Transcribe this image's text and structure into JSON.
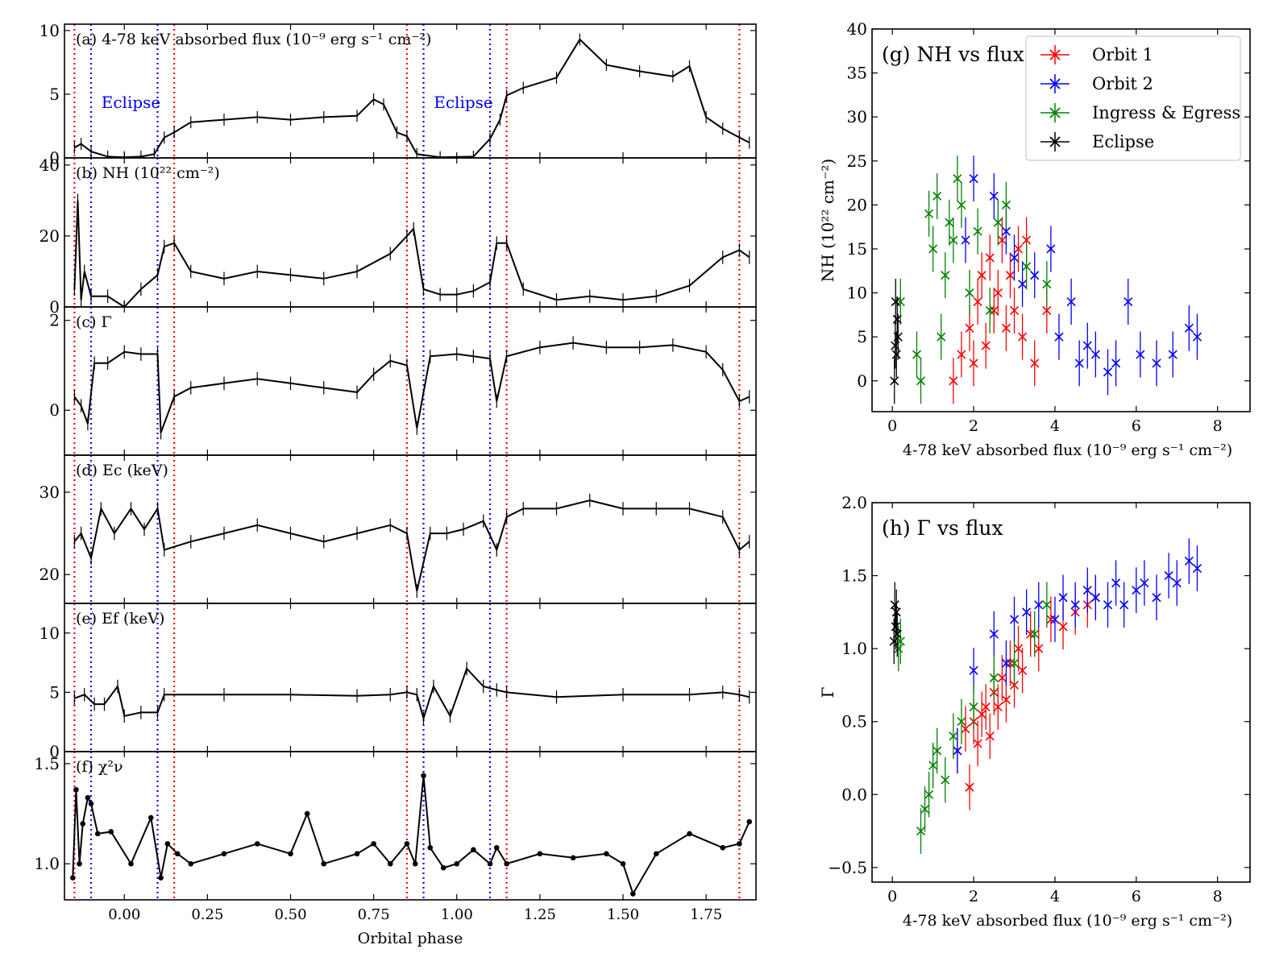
{
  "figure": {
    "xlabel": "Orbital phase",
    "xticks": [
      "0.00",
      "0.25",
      "0.50",
      "0.75",
      "1.00",
      "1.25",
      "1.50",
      "1.75"
    ],
    "eclipse_label": "Eclipse"
  },
  "chart_data": [
    {
      "type": "line",
      "panel": "a",
      "label": "(a) 4-78 keV absorbed flux (10⁻⁹ erg s⁻¹ cm⁻²)",
      "ylim": [
        0,
        10.5
      ],
      "yticks": [
        "0",
        "5",
        "10"
      ],
      "x": [
        -0.15,
        -0.13,
        -0.1,
        -0.05,
        0.0,
        0.05,
        0.09,
        0.12,
        0.15,
        0.2,
        0.3,
        0.4,
        0.5,
        0.6,
        0.7,
        0.75,
        0.78,
        0.82,
        0.85,
        0.88,
        0.95,
        1.05,
        1.1,
        1.13,
        1.15,
        1.2,
        1.3,
        1.37,
        1.45,
        1.55,
        1.65,
        1.7,
        1.75,
        1.8,
        1.85,
        1.88
      ],
      "y": [
        0.8,
        1.1,
        0.5,
        0.1,
        0.05,
        0.1,
        0.3,
        1.6,
        2.0,
        2.8,
        3.0,
        3.2,
        3.0,
        3.2,
        3.3,
        4.6,
        4.2,
        2.0,
        1.7,
        0.3,
        0.05,
        0.1,
        1.5,
        3.0,
        4.9,
        5.5,
        6.3,
        9.3,
        7.3,
        6.8,
        6.4,
        7.2,
        3.2,
        2.3,
        1.6,
        1.2
      ]
    },
    {
      "type": "line",
      "panel": "b",
      "label": "(b) NH (10²² cm⁻²)",
      "ylim": [
        0,
        42
      ],
      "yticks": [
        "0",
        "20",
        "40"
      ],
      "x": [
        -0.15,
        -0.14,
        -0.13,
        -0.12,
        -0.1,
        -0.05,
        0.0,
        0.05,
        0.1,
        0.12,
        0.15,
        0.2,
        0.3,
        0.4,
        0.5,
        0.6,
        0.7,
        0.8,
        0.85,
        0.87,
        0.9,
        0.95,
        1.0,
        1.05,
        1.1,
        1.12,
        1.15,
        1.2,
        1.3,
        1.4,
        1.5,
        1.6,
        1.7,
        1.8,
        1.85,
        1.88
      ],
      "y": [
        5,
        30,
        2,
        10,
        3,
        3,
        0,
        5,
        9,
        17,
        18,
        10,
        8,
        10,
        9,
        8,
        10,
        15,
        20,
        22,
        5,
        3.5,
        3.5,
        4.5,
        7,
        18,
        18,
        5,
        2,
        3,
        2,
        3,
        6,
        14,
        16,
        14
      ]
    },
    {
      "type": "line",
      "panel": "c",
      "label": "(c) Γ",
      "ylim": [
        -1.0,
        2.3
      ],
      "yticks": [
        "0",
        "2"
      ],
      "x": [
        -0.15,
        -0.13,
        -0.11,
        -0.09,
        -0.05,
        0.0,
        0.05,
        0.1,
        0.11,
        0.15,
        0.2,
        0.3,
        0.4,
        0.5,
        0.6,
        0.7,
        0.75,
        0.8,
        0.85,
        0.88,
        0.92,
        1.0,
        1.05,
        1.1,
        1.12,
        1.15,
        1.25,
        1.35,
        1.45,
        1.55,
        1.65,
        1.75,
        1.8,
        1.85,
        1.88
      ],
      "y": [
        0.3,
        0.1,
        -0.3,
        1.05,
        1.05,
        1.3,
        1.25,
        1.25,
        -0.5,
        0.3,
        0.5,
        0.6,
        0.7,
        0.6,
        0.5,
        0.4,
        0.8,
        1.1,
        1.0,
        -0.4,
        1.2,
        1.25,
        1.2,
        1.15,
        0.2,
        1.2,
        1.4,
        1.5,
        1.4,
        1.4,
        1.45,
        1.3,
        0.9,
        0.2,
        0.3
      ]
    },
    {
      "type": "line",
      "panel": "d",
      "label": "(d) Ec (keV)",
      "ylim": [
        16.5,
        34.5
      ],
      "yticks": [
        "20",
        "30"
      ],
      "x": [
        -0.15,
        -0.13,
        -0.1,
        -0.07,
        -0.03,
        0.02,
        0.06,
        0.1,
        0.12,
        0.2,
        0.3,
        0.4,
        0.5,
        0.6,
        0.7,
        0.8,
        0.85,
        0.88,
        0.92,
        0.97,
        1.02,
        1.08,
        1.12,
        1.15,
        1.2,
        1.3,
        1.4,
        1.5,
        1.6,
        1.7,
        1.8,
        1.85,
        1.88
      ],
      "y": [
        24,
        25,
        22,
        28,
        25,
        28,
        25.5,
        28,
        23,
        24,
        25,
        26,
        25,
        24,
        25,
        26,
        25,
        18,
        25,
        25,
        25.5,
        26.5,
        23,
        27,
        28,
        28,
        29,
        28,
        28,
        28,
        27,
        23,
        24
      ]
    },
    {
      "type": "line",
      "panel": "e",
      "label": "(e) Ef (keV)",
      "ylim": [
        0,
        12.5
      ],
      "yticks": [
        "0",
        "5",
        "10"
      ],
      "x": [
        -0.15,
        -0.12,
        -0.09,
        -0.06,
        -0.02,
        0.0,
        0.05,
        0.1,
        0.12,
        0.3,
        0.5,
        0.7,
        0.8,
        0.85,
        0.88,
        0.9,
        0.93,
        0.98,
        1.03,
        1.08,
        1.12,
        1.15,
        1.3,
        1.5,
        1.7,
        1.8,
        1.85,
        1.88
      ],
      "y": [
        4.5,
        4.8,
        4,
        4,
        5.5,
        3,
        3.3,
        3.3,
        4.8,
        4.8,
        4.8,
        4.7,
        4.8,
        5,
        4.8,
        2.8,
        5.5,
        3,
        7,
        5.5,
        5.2,
        5,
        4.6,
        4.8,
        4.8,
        5,
        4.8,
        4.6
      ]
    },
    {
      "type": "line",
      "panel": "f",
      "label": "(f) χ²ν",
      "ylim": [
        0.82,
        1.56
      ],
      "yticks": [
        "1.0",
        "1.5"
      ],
      "x": [
        -0.155,
        -0.145,
        -0.135,
        -0.125,
        -0.11,
        -0.1,
        -0.08,
        -0.04,
        0.02,
        0.08,
        0.11,
        0.13,
        0.16,
        0.2,
        0.3,
        0.4,
        0.5,
        0.55,
        0.6,
        0.7,
        0.75,
        0.8,
        0.85,
        0.875,
        0.9,
        0.92,
        0.96,
        1.0,
        1.05,
        1.1,
        1.12,
        1.15,
        1.25,
        1.35,
        1.45,
        1.5,
        1.53,
        1.6,
        1.7,
        1.8,
        1.85,
        1.88
      ],
      "y": [
        0.93,
        1.37,
        1.0,
        1.2,
        1.33,
        1.3,
        1.15,
        1.16,
        1.0,
        1.23,
        0.93,
        1.1,
        1.05,
        1.0,
        1.05,
        1.1,
        1.05,
        1.25,
        1.0,
        1.05,
        1.1,
        1.0,
        1.1,
        1.0,
        1.44,
        1.08,
        0.98,
        1.0,
        1.07,
        1.0,
        1.08,
        1.0,
        1.05,
        1.03,
        1.05,
        1.0,
        0.85,
        1.05,
        1.15,
        1.08,
        1.1,
        1.21
      ]
    },
    {
      "type": "scatter",
      "panel": "g",
      "title": "(g) NH vs flux",
      "xlabel": "4-78 keV absorbed flux (10⁻⁹ erg s⁻¹ cm⁻²)",
      "ylabel": "NH (10²² cm⁻²)",
      "xlim": [
        -0.5,
        8.8
      ],
      "ylim": [
        -3.5,
        40
      ],
      "xticks": [
        "0",
        "2",
        "4",
        "6",
        "8"
      ],
      "yticks": [
        "0",
        "5",
        "10",
        "15",
        "20",
        "25",
        "30",
        "35",
        "40"
      ],
      "legend": "top-right",
      "series": [
        {
          "name": "Orbit 1",
          "color": "#ff0000",
          "x": [
            1.5,
            1.7,
            1.9,
            2.0,
            2.1,
            2.2,
            2.3,
            2.4,
            2.5,
            2.6,
            2.7,
            2.8,
            2.9,
            3.0,
            3.1,
            3.2,
            3.3,
            3.5,
            3.8
          ],
          "y": [
            0,
            3,
            6,
            2,
            9,
            12,
            4,
            14,
            8,
            10,
            16,
            6,
            12,
            8,
            15,
            5,
            16,
            2,
            8
          ]
        },
        {
          "name": "Orbit 2",
          "color": "#0000ff",
          "x": [
            1.8,
            2.0,
            2.5,
            2.8,
            3.0,
            3.2,
            3.5,
            3.9,
            4.1,
            4.4,
            4.6,
            4.8,
            5.0,
            5.3,
            5.5,
            5.8,
            6.1,
            6.5,
            6.9,
            7.3,
            7.5
          ],
          "y": [
            16,
            23,
            21,
            17,
            14,
            11,
            12,
            15,
            5,
            9,
            2,
            4,
            3,
            1,
            2,
            9,
            3,
            2,
            3,
            6,
            5
          ]
        },
        {
          "name": "Ingress & Egress",
          "color": "#008000",
          "x": [
            0.2,
            0.6,
            0.7,
            0.9,
            1.0,
            1.1,
            1.2,
            1.3,
            1.4,
            1.5,
            1.6,
            1.7,
            1.9,
            2.1,
            2.4,
            2.6,
            2.8,
            3.3,
            3.8
          ],
          "y": [
            9,
            3,
            0,
            19,
            15,
            21,
            5,
            12,
            18,
            16,
            23,
            20,
            10,
            17,
            8,
            18,
            20,
            13,
            11
          ]
        },
        {
          "name": "Eclipse",
          "color": "#000000",
          "x": [
            0.05,
            0.07,
            0.08,
            0.1,
            0.12,
            0.14
          ],
          "y": [
            0,
            4,
            9,
            3,
            7,
            5
          ]
        }
      ]
    },
    {
      "type": "scatter",
      "panel": "h",
      "title": "(h) Γ vs flux",
      "xlabel": "4-78 keV absorbed flux (10⁻⁹ erg s⁻¹ cm⁻²)",
      "ylabel": "Γ",
      "xlim": [
        -0.5,
        8.8
      ],
      "ylim": [
        -0.6,
        2.0
      ],
      "xticks": [
        "0",
        "2",
        "4",
        "6",
        "8"
      ],
      "yticks": [
        "−0.5",
        "0.0",
        "0.5",
        "1.0",
        "1.5",
        "2.0"
      ],
      "series": [
        {
          "name": "Orbit 1",
          "color": "#ff0000",
          "x": [
            1.6,
            1.8,
            1.9,
            2.0,
            2.1,
            2.2,
            2.3,
            2.4,
            2.5,
            2.6,
            2.7,
            2.8,
            2.9,
            3.0,
            3.1,
            3.2,
            3.4,
            3.6,
            3.9,
            4.2,
            4.5,
            4.8,
            5.0
          ],
          "y": [
            0.3,
            0.45,
            0.05,
            0.5,
            0.35,
            0.55,
            0.6,
            0.4,
            0.7,
            0.6,
            0.8,
            0.65,
            0.9,
            0.75,
            1.0,
            0.85,
            1.1,
            1.0,
            1.2,
            1.15,
            1.25,
            1.3,
            1.35
          ]
        },
        {
          "name": "Orbit 2",
          "color": "#0000ff",
          "x": [
            1.6,
            2.0,
            2.5,
            2.8,
            3.0,
            3.3,
            3.6,
            4.0,
            4.2,
            4.5,
            4.8,
            5.0,
            5.3,
            5.5,
            5.7,
            6.0,
            6.2,
            6.5,
            6.8,
            7.0,
            7.3,
            7.5
          ],
          "y": [
            0.3,
            0.85,
            1.1,
            0.9,
            1.2,
            1.25,
            1.3,
            1.2,
            1.35,
            1.3,
            1.4,
            1.35,
            1.3,
            1.45,
            1.3,
            1.4,
            1.45,
            1.35,
            1.5,
            1.45,
            1.6,
            1.55
          ]
        },
        {
          "name": "Ingress & Egress",
          "color": "#008000",
          "x": [
            0.15,
            0.2,
            0.7,
            0.8,
            0.9,
            1.0,
            1.1,
            1.3,
            1.5,
            1.7,
            2.0,
            2.5,
            3.0,
            3.5,
            3.8
          ],
          "y": [
            1.0,
            1.05,
            -0.25,
            -0.1,
            0.0,
            0.2,
            0.3,
            0.1,
            0.4,
            0.5,
            0.6,
            0.8,
            0.9,
            1.1,
            1.3
          ]
        },
        {
          "name": "Eclipse",
          "color": "#000000",
          "x": [
            0.04,
            0.06,
            0.08,
            0.1,
            0.12
          ],
          "y": [
            1.05,
            1.3,
            1.15,
            1.25,
            1.1
          ]
        }
      ]
    }
  ]
}
